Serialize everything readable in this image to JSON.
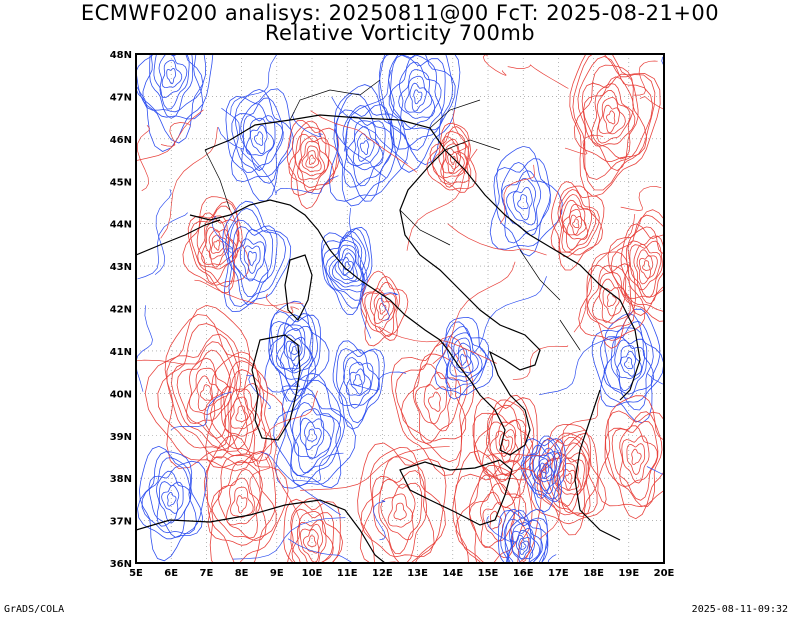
{
  "title": {
    "line1": "ECMWF0200 analisys: 20250811@00 FcT: 2025-08-21+00",
    "line2": "Relative Vorticity 700mb"
  },
  "map": {
    "lat_labels": [
      "48N",
      "47N",
      "46N",
      "45N",
      "44N",
      "43N",
      "42N",
      "41N",
      "40N",
      "39N",
      "38N",
      "37N",
      "36N"
    ],
    "lon_labels": [
      "5E",
      "6E",
      "7E",
      "8E",
      "9E",
      "10E",
      "11E",
      "12E",
      "13E",
      "14E",
      "15E",
      "16E",
      "17E",
      "18E",
      "19E",
      "20E"
    ],
    "lat_range": [
      36,
      48
    ],
    "lon_range": [
      5,
      20
    ],
    "colors": {
      "positive_vorticity": "#e8423c",
      "negative_vorticity": "#2e4ff0",
      "coastline": "#000000",
      "gridline": "#888888",
      "frame": "#000000"
    }
  },
  "footer": {
    "left": "GrADS/COLA",
    "right": "2025-08-11-09:32"
  }
}
